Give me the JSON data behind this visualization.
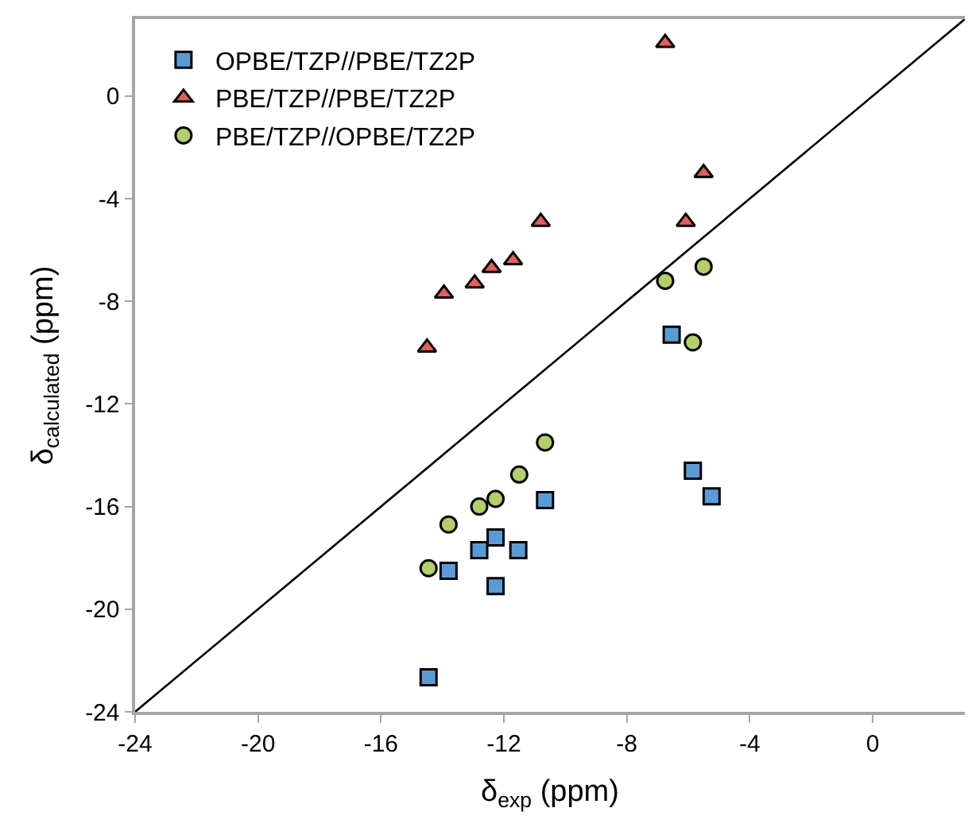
{
  "chart_data": {
    "type": "scatter",
    "xlabel": "δ$_{exp}$ (ppm)",
    "ylabel": "δ$_{calculated}$ (ppm)",
    "xlim": [
      -24,
      3
    ],
    "xticks": [
      -24,
      -20,
      -16,
      -12,
      -8,
      -4,
      0
    ],
    "ylim": [
      -24,
      3
    ],
    "yticks": [
      -24,
      -20,
      -16,
      -12,
      -8,
      -4,
      0
    ],
    "legend": "top left",
    "series": [
      {
        "name": "OPBE/TZP//PBE/TZ2P",
        "color": "#5b9bd5",
        "marker": "square",
        "x": [
          -14.45,
          -13.8,
          -12.8,
          -12.27,
          -12.27,
          -11.53,
          -10.66,
          -6.54,
          -5.85,
          -5.24
        ],
        "values": [
          -22.65,
          -18.5,
          -17.7,
          -17.2,
          -19.1,
          -17.7,
          -15.75,
          -9.3,
          -14.6,
          -15.6
        ]
      },
      {
        "name": "PBE/TZP//PBE/TZ2P",
        "color": "#e0605a",
        "marker": "triangle",
        "x": [
          -14.5,
          -13.95,
          -12.95,
          -12.4,
          -11.7,
          -10.8,
          -6.75,
          -6.08,
          -5.5
        ],
        "values": [
          -9.8,
          -7.7,
          -7.3,
          -6.7,
          -6.4,
          -4.9,
          2.07,
          -4.9,
          -3.0
        ]
      },
      {
        "name": "PBE/TZP//OPBE/TZ2P",
        "color": "#b3cf6a",
        "marker": "circle",
        "x": [
          -14.45,
          -13.8,
          -12.8,
          -12.27,
          -11.5,
          -10.66,
          -6.75,
          -5.85,
          -5.5
        ],
        "values": [
          -18.4,
          -16.7,
          -16.0,
          -15.7,
          -14.75,
          -13.5,
          -7.2,
          -9.6,
          -6.65
        ]
      },
      {
        "type": "line",
        "color": "#000000",
        "marker": "none",
        "x": [
          -24,
          3
        ],
        "values": [
          -24,
          3
        ]
      }
    ]
  }
}
